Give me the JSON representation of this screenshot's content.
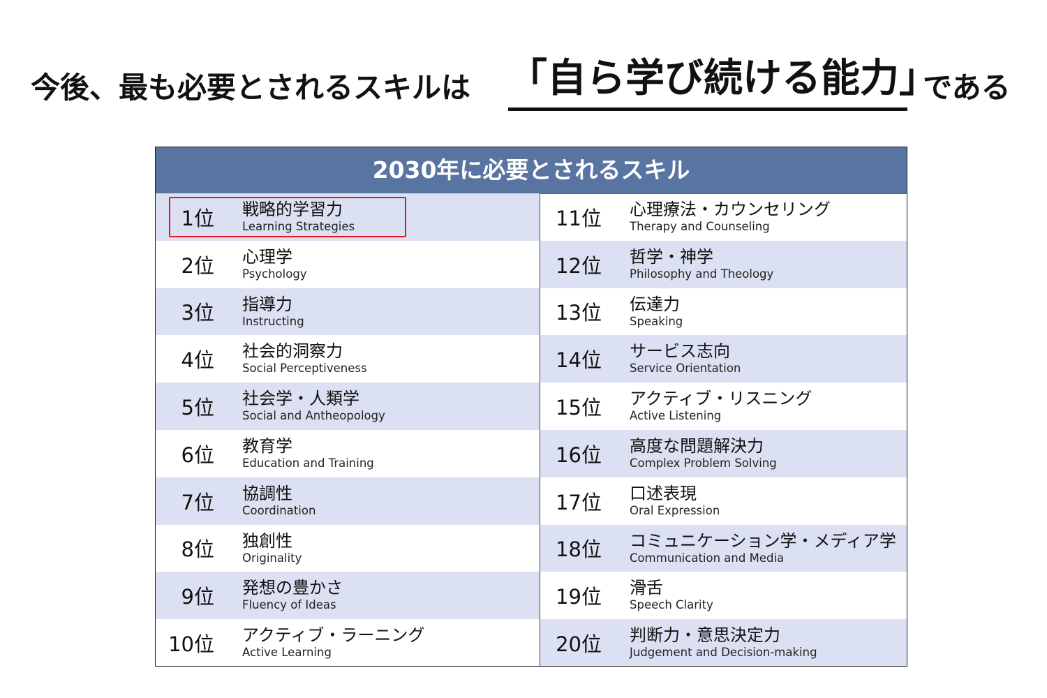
{
  "headline": {
    "prefix": "今後、最も必要とされるスキルは",
    "emphasis": "「自ら学び続ける能力」",
    "suffix": "である"
  },
  "table": {
    "title": "2030年に必要とされるスキル",
    "highlight_color": "#e8141c",
    "header_color": "#5874a0",
    "shade_color": "#dbe1f2",
    "left": [
      {
        "rank": "1位",
        "jp": "戦略的学習力",
        "en": "Learning Strategies"
      },
      {
        "rank": "2位",
        "jp": "心理学",
        "en": "Psychology"
      },
      {
        "rank": "3位",
        "jp": "指導力",
        "en": "Instructing"
      },
      {
        "rank": "4位",
        "jp": "社会的洞察力",
        "en": "Social Perceptiveness"
      },
      {
        "rank": "5位",
        "jp": "社会学・人類学",
        "en": "Social and Antheopology"
      },
      {
        "rank": "6位",
        "jp": "教育学",
        "en": "Education and Training"
      },
      {
        "rank": "7位",
        "jp": "協調性",
        "en": "Coordination"
      },
      {
        "rank": "8位",
        "jp": "独創性",
        "en": "Originality"
      },
      {
        "rank": "9位",
        "jp": "発想の豊かさ",
        "en": "Fluency of Ideas"
      },
      {
        "rank": "10位",
        "jp": "アクティブ・ラーニング",
        "en": "Active Learning"
      }
    ],
    "right": [
      {
        "rank": "11位",
        "jp": "心理療法・カウンセリング",
        "en": "Therapy and Counseling"
      },
      {
        "rank": "12位",
        "jp": "哲学・神学",
        "en": "Philosophy and Theology"
      },
      {
        "rank": "13位",
        "jp": "伝達力",
        "en": "Speaking"
      },
      {
        "rank": "14位",
        "jp": "サービス志向",
        "en": "Service Orientation"
      },
      {
        "rank": "15位",
        "jp": "アクティブ・リスニング",
        "en": "Active Listening"
      },
      {
        "rank": "16位",
        "jp": "高度な問題解決力",
        "en": "Complex Problem Solving"
      },
      {
        "rank": "17位",
        "jp": "口述表現",
        "en": "Oral Expression"
      },
      {
        "rank": "18位",
        "jp": "コミュニケーション学・メディア学",
        "en": "Communication and Media"
      },
      {
        "rank": "19位",
        "jp": "滑舌",
        "en": "Speech Clarity"
      },
      {
        "rank": "20位",
        "jp": "判断力・意思決定力",
        "en": "Judgement and Decision-making"
      }
    ]
  }
}
